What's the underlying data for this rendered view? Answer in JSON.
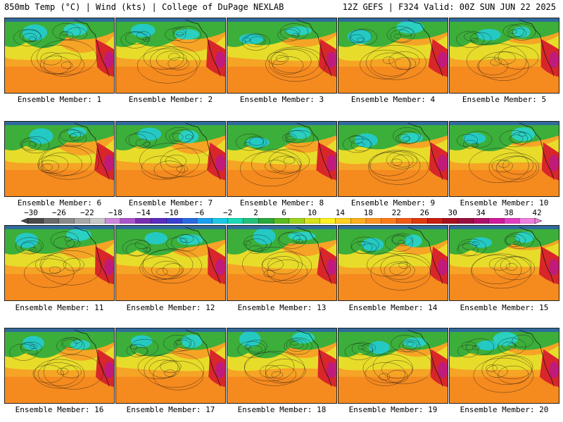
{
  "header": {
    "left": "850mb Temp (°C) | Wind (kts) | College of DuPage NEXLAB",
    "right": "12Z GEFS | F324 Valid: 00Z SUN JUN 22 2025"
  },
  "panels": [
    {
      "caption": "Ensemble Member: 1"
    },
    {
      "caption": "Ensemble Member: 2"
    },
    {
      "caption": "Ensemble Member: 3"
    },
    {
      "caption": "Ensemble Member: 4"
    },
    {
      "caption": "Ensemble Member: 5"
    },
    {
      "caption": "Ensemble Member: 6"
    },
    {
      "caption": "Ensemble Member: 7"
    },
    {
      "caption": "Ensemble Member: 8"
    },
    {
      "caption": "Ensemble Member: 9"
    },
    {
      "caption": "Ensemble Member: 10"
    },
    {
      "caption": "Ensemble Member: 11"
    },
    {
      "caption": "Ensemble Member: 12"
    },
    {
      "caption": "Ensemble Member: 13"
    },
    {
      "caption": "Ensemble Member: 14"
    },
    {
      "caption": "Ensemble Member: 15"
    },
    {
      "caption": "Ensemble Member: 16"
    },
    {
      "caption": "Ensemble Member: 17"
    },
    {
      "caption": "Ensemble Member: 18"
    },
    {
      "caption": "Ensemble Member: 19"
    },
    {
      "caption": "Ensemble Member: 20"
    }
  ],
  "colorbar": {
    "labels": [
      "−30",
      "−26",
      "−22",
      "−18",
      "−14",
      "−10",
      "−6",
      "−2",
      "2",
      "6",
      "10",
      "14",
      "18",
      "22",
      "26",
      "30",
      "34",
      "38",
      "42"
    ],
    "colors": [
      "#4a4a4a",
      "#6b6b6b",
      "#8a8a8a",
      "#a8a8a8",
      "#c8c8c8",
      "#cc88dd",
      "#aa55cc",
      "#7a2fb0",
      "#5a2cc0",
      "#3a3fd0",
      "#2a6ae0",
      "#1aa0f0",
      "#19c9e6",
      "#1ad8b8",
      "#22c07a",
      "#2aa83c",
      "#5cbb20",
      "#9cd21a",
      "#d8e21a",
      "#fff020",
      "#ffd020",
      "#ffb020",
      "#ff9420",
      "#ff7a18",
      "#f05a14",
      "#e03a10",
      "#c81e10",
      "#a8101e",
      "#9a1040",
      "#b0106a",
      "#d01a9a",
      "#e040c0",
      "#f080e0"
    ]
  }
}
